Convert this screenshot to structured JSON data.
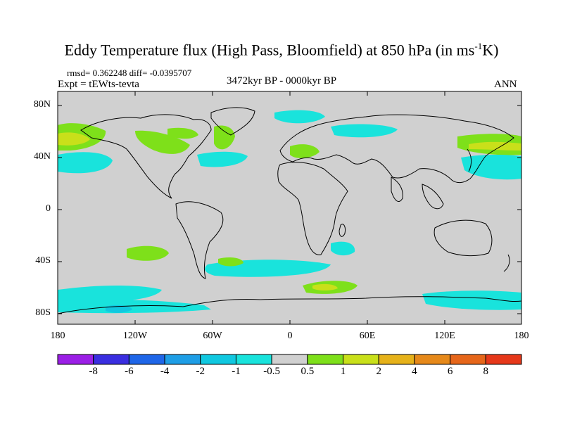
{
  "title": "Eddy Temperature flux (High Pass, Bloomfield) at 850 hPa (in ms",
  "title_sup": "-1",
  "title_end": "K)",
  "stats": "rmsd= 0.362248 diff= -0.0395707",
  "expt": "Expt = tEWts-tevta",
  "period": "3472kyr BP - 0000kyr BP",
  "season": "ANN",
  "lat_labels": [
    "80N",
    "40N",
    "0",
    "40S",
    "80S"
  ],
  "lon_labels": [
    "180",
    "120W",
    "60W",
    "0",
    "60E",
    "120E",
    "180"
  ],
  "colorbar": {
    "labels": [
      "-8",
      "-6",
      "-4",
      "-2",
      "-1",
      "-0.5",
      "0.5",
      "1",
      "2",
      "4",
      "6",
      "8"
    ],
    "colors": [
      "#9b1fe6",
      "#3a2ee0",
      "#1f66e8",
      "#1e9ee6",
      "#10c8e0",
      "#19e3dc",
      "#d0d0d0",
      "#7ee01a",
      "#c9e01a",
      "#e6b21a",
      "#e6891a",
      "#e6661a",
      "#e6381a"
    ]
  },
  "colors": {
    "ocean_land_bg": "#d0d0d0",
    "cyan_neg": "#19e3dc",
    "green_pos": "#7ee01a",
    "yellow_pos": "#c9e01a"
  }
}
